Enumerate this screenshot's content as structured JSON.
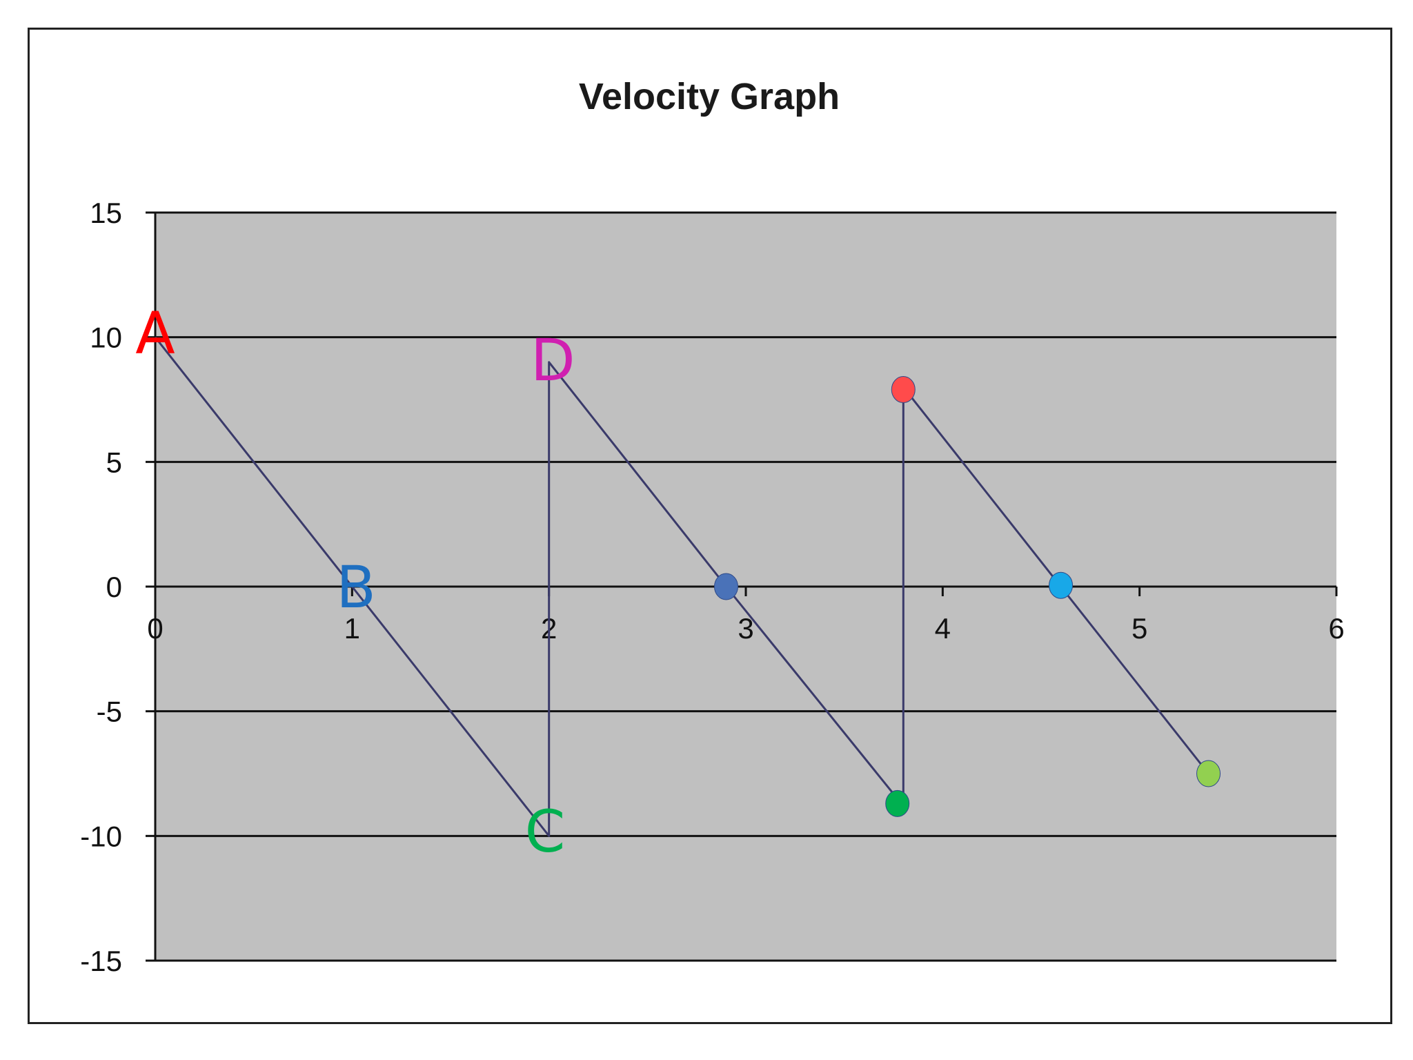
{
  "chart_data": {
    "type": "line",
    "title": "Velocity Graph",
    "xlabel": "",
    "ylabel": "",
    "xlim": [
      0,
      6
    ],
    "ylim": [
      -15,
      15
    ],
    "x_ticks": [
      "0",
      "1",
      "2",
      "3",
      "4",
      "5",
      "6"
    ],
    "y_ticks": [
      "15",
      "10",
      "5",
      "0",
      "-5",
      "-10",
      "-15"
    ],
    "grid": "horizontal",
    "plot_bg": "#c0c0c0",
    "line_color": "#3a3a6a",
    "series": [
      {
        "x": [
          0,
          1,
          2,
          2,
          2.9,
          3.8,
          3.8,
          4.6,
          5.35
        ],
        "y": [
          10,
          0,
          -10,
          9,
          0,
          -8.8,
          8,
          0,
          -7.5
        ]
      }
    ],
    "annotations": [
      {
        "text": "A",
        "x": 0,
        "y": 10.2,
        "color": "#ff0000"
      },
      {
        "text": "B",
        "x": 1.02,
        "y": 0,
        "color": "#1f6fc0"
      },
      {
        "text": "C",
        "x": 1.98,
        "y": -9.8,
        "color": "#00b050"
      },
      {
        "text": "D",
        "x": 2.02,
        "y": 9.1,
        "color": "#d020b0"
      }
    ],
    "markers": [
      {
        "x": 2.9,
        "y": 0,
        "color": "#4a72b8"
      },
      {
        "x": 3.8,
        "y": 7.9,
        "color": "#ff4b4b"
      },
      {
        "x": 3.77,
        "y": -8.7,
        "color": "#00b050"
      },
      {
        "x": 4.6,
        "y": 0.05,
        "color": "#18a8e8"
      },
      {
        "x": 5.35,
        "y": -7.5,
        "color": "#92d050"
      }
    ]
  }
}
